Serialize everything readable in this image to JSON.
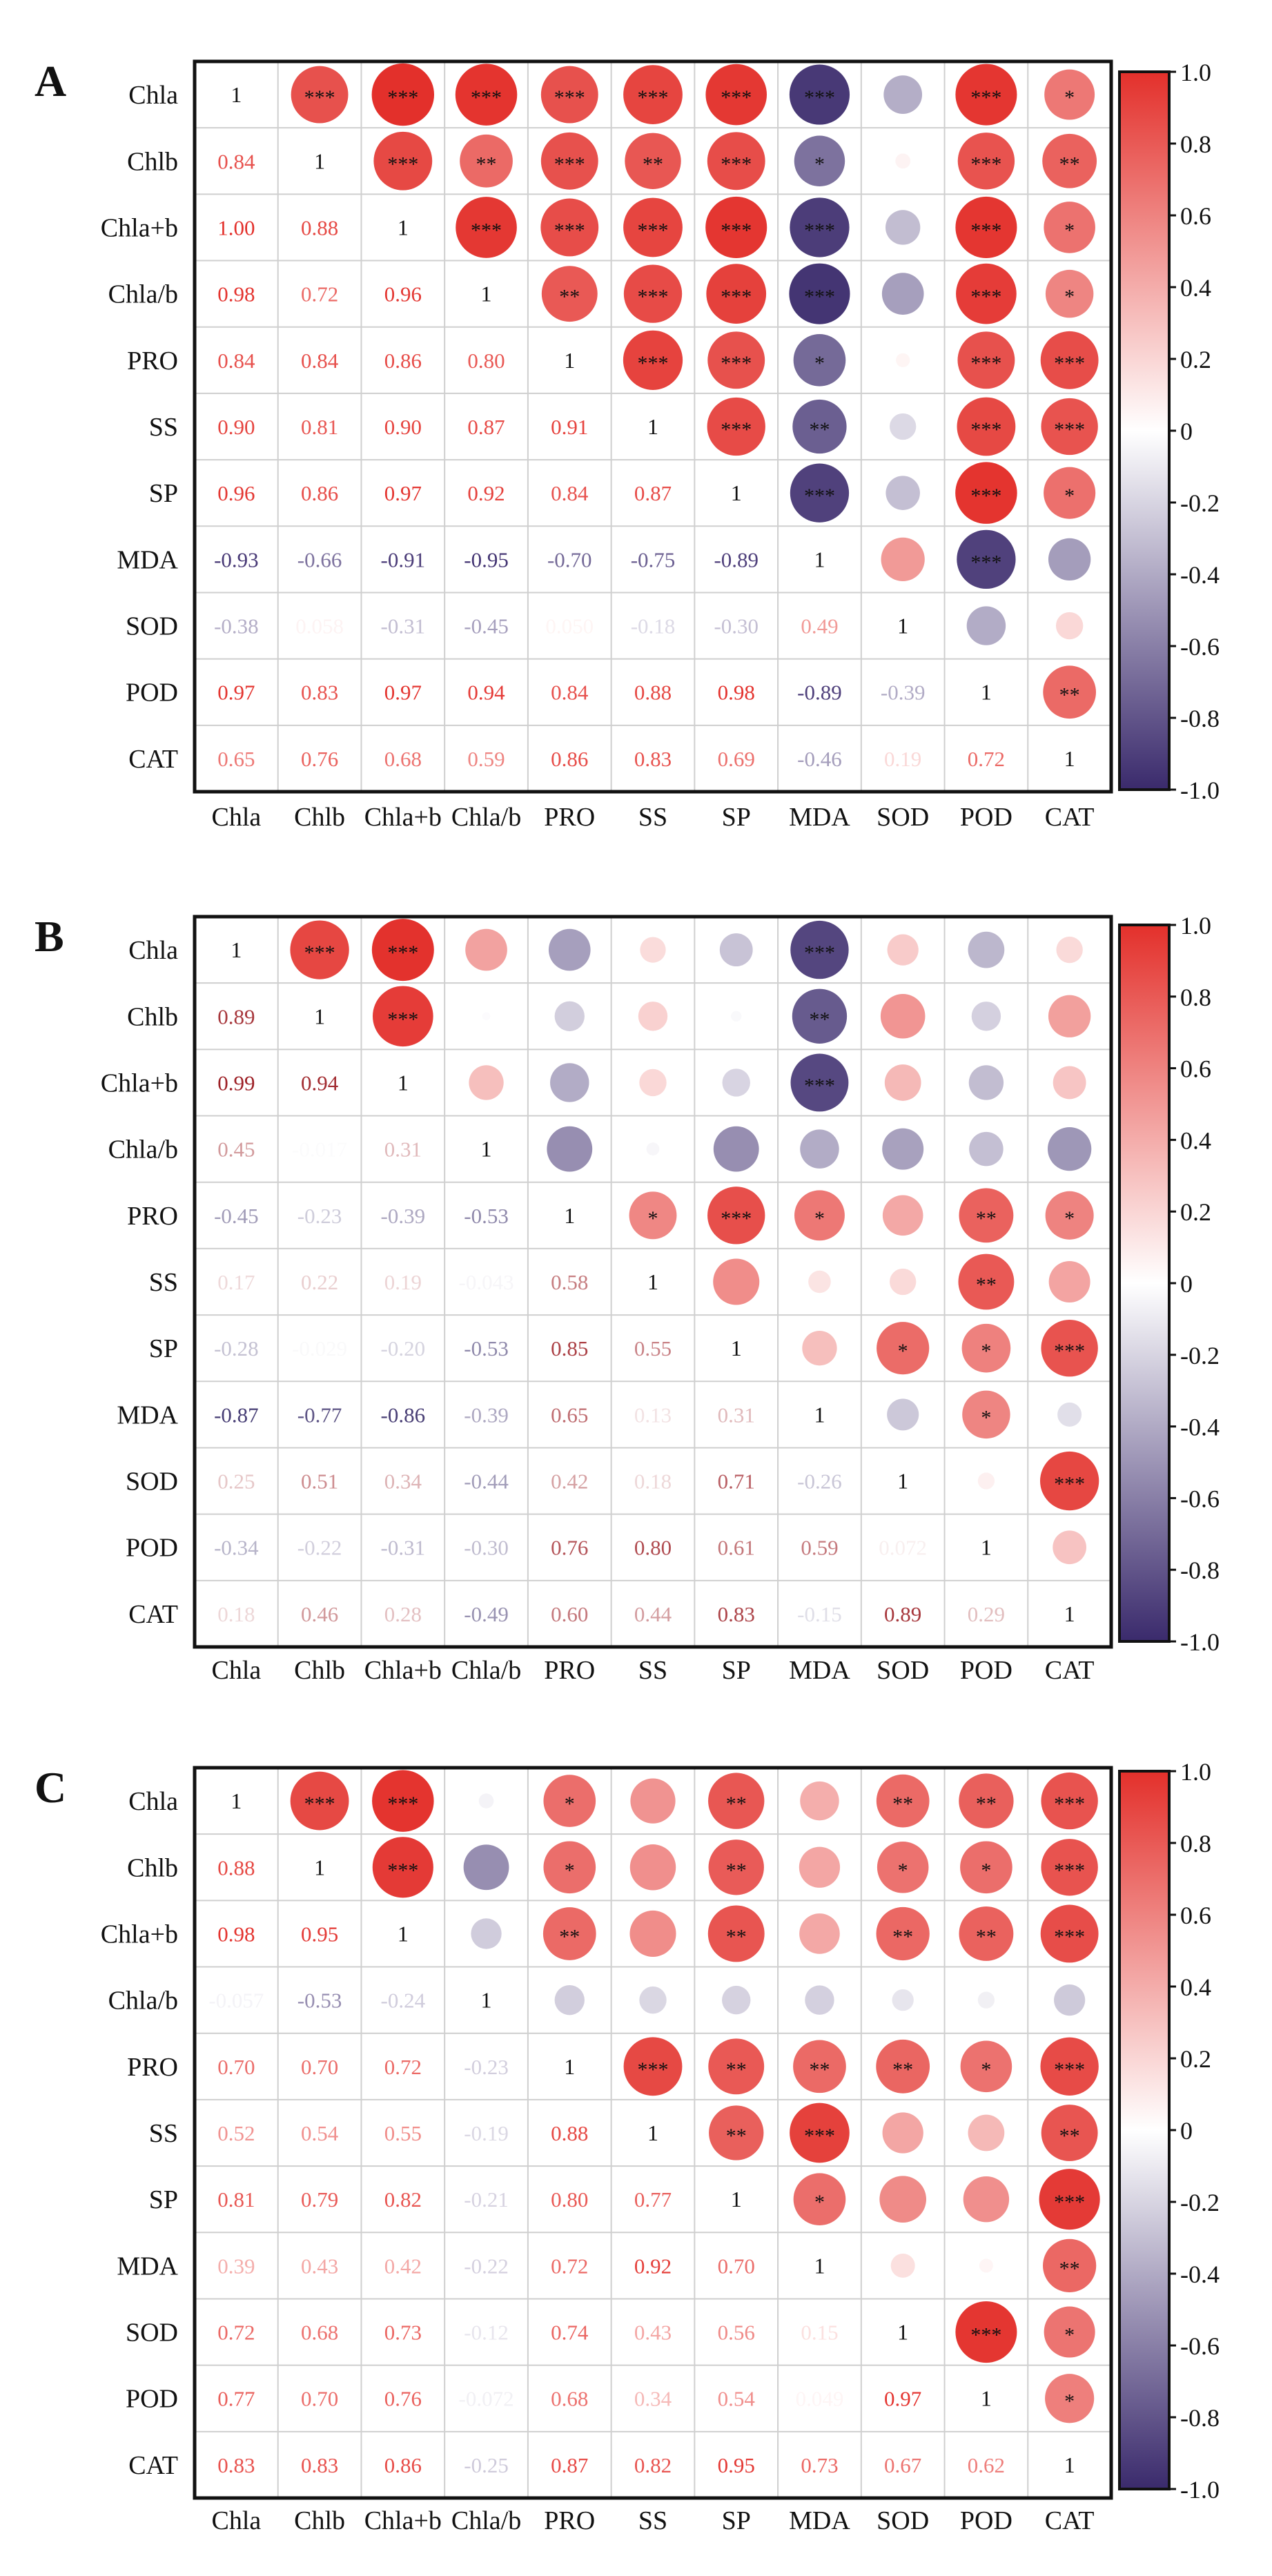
{
  "chart_data": [
    {
      "type": "heatmap",
      "panel_label": "A",
      "variables": [
        "Chla",
        "Chlb",
        "Chla+b",
        "Chla/b",
        "PRO",
        "SS",
        "SP",
        "MDA",
        "SOD",
        "POD",
        "CAT"
      ],
      "lower_values": [
        [],
        [
          "0.84"
        ],
        [
          "1.00",
          "0.88"
        ],
        [
          "0.98",
          "0.72",
          "0.96"
        ],
        [
          "0.84",
          "0.84",
          "0.86",
          "0.80"
        ],
        [
          "0.90",
          "0.81",
          "0.90",
          "0.87",
          "0.91"
        ],
        [
          "0.96",
          "0.86",
          "0.97",
          "0.92",
          "0.84",
          "0.87"
        ],
        [
          "-0.93",
          "-0.66",
          "-0.91",
          "-0.95",
          "-0.70",
          "-0.75",
          "-0.89"
        ],
        [
          "-0.38",
          "0.058",
          "-0.31",
          "-0.45",
          "0.050",
          "-0.18",
          "-0.30",
          "0.49"
        ],
        [
          "0.97",
          "0.83",
          "0.97",
          "0.94",
          "0.84",
          "0.88",
          "0.98",
          "-0.89",
          "-0.39"
        ],
        [
          "0.65",
          "0.76",
          "0.68",
          "0.59",
          "0.86",
          "0.83",
          "0.69",
          "-0.46",
          "0.19",
          "0.72"
        ]
      ],
      "upper_significance": [
        [
          "***",
          "***",
          "***",
          "***",
          "***",
          "***",
          "***",
          "",
          "***",
          "*"
        ],
        [
          "***",
          "**",
          "***",
          "**",
          "***",
          "*",
          "",
          "***",
          "**"
        ],
        [
          "***",
          "***",
          "***",
          "***",
          "***",
          "",
          "***",
          "*"
        ],
        [
          "**",
          "***",
          "***",
          "***",
          "",
          "***",
          "*"
        ],
        [
          "***",
          "***",
          "*",
          "",
          "***",
          "***"
        ],
        [
          "***",
          "**",
          "",
          "***",
          "***"
        ],
        [
          "***",
          "",
          "***",
          "*"
        ],
        [
          "",
          "***",
          ""
        ],
        [
          "",
          ""
        ],
        [
          "**"
        ]
      ],
      "diagonal_label": "1",
      "colorbar_ticks": [
        "1.0",
        "0.8",
        "0.6",
        "0.4",
        "0.2",
        "0",
        "-0.2",
        "-0.4",
        "-0.6",
        "-0.8",
        "-1.0"
      ],
      "color_range": [
        -1,
        1
      ],
      "text_dark": false
    },
    {
      "type": "heatmap",
      "panel_label": "B",
      "variables": [
        "Chla",
        "Chlb",
        "Chla+b",
        "Chla/b",
        "PRO",
        "SS",
        "SP",
        "MDA",
        "SOD",
        "POD",
        "CAT"
      ],
      "lower_values": [
        [],
        [
          "0.89"
        ],
        [
          "0.99",
          "0.94"
        ],
        [
          "0.45",
          "-0.017",
          "0.31"
        ],
        [
          "-0.45",
          "-0.23",
          "-0.39",
          "-0.53"
        ],
        [
          "0.17",
          "0.22",
          "0.19",
          "-0.043",
          "0.58"
        ],
        [
          "-0.28",
          "-0.029",
          "-0.20",
          "-0.53",
          "0.85",
          "0.55"
        ],
        [
          "-0.87",
          "-0.77",
          "-0.86",
          "-0.39",
          "0.65",
          "0.13",
          "0.31"
        ],
        [
          "0.25",
          "0.51",
          "0.34",
          "-0.44",
          "0.42",
          "0.18",
          "0.71",
          "-0.26"
        ],
        [
          "-0.34",
          "-0.22",
          "-0.31",
          "-0.30",
          "0.76",
          "0.80",
          "0.61",
          "0.59",
          "0.072"
        ],
        [
          "0.18",
          "0.46",
          "0.28",
          "-0.49",
          "0.60",
          "0.44",
          "0.83",
          "-0.15",
          "0.89",
          "0.29"
        ]
      ],
      "upper_significance": [
        [
          "***",
          "***",
          "",
          "",
          "",
          "",
          "***",
          "",
          "",
          ""
        ],
        [
          "***",
          "",
          "",
          "",
          "",
          "**",
          "",
          "",
          ""
        ],
        [
          "",
          "",
          "",
          "",
          "***",
          "",
          "",
          ""
        ],
        [
          "",
          "",
          "",
          "",
          "",
          "",
          ""
        ],
        [
          "*",
          "***",
          "*",
          "",
          "**",
          "*"
        ],
        [
          "",
          "",
          "",
          "**",
          ""
        ],
        [
          "",
          "*",
          "*",
          "***"
        ],
        [
          "",
          "*",
          ""
        ],
        [
          "",
          "***"
        ],
        [
          ""
        ]
      ],
      "diagonal_label": "1",
      "colorbar_ticks": [
        "1.0",
        "0.8",
        "0.6",
        "0.4",
        "0.2",
        "0",
        "-0.2",
        "-0.4",
        "-0.6",
        "-0.8",
        "-1.0"
      ],
      "color_range": [
        -1,
        1
      ],
      "text_dark": true
    },
    {
      "type": "heatmap",
      "panel_label": "C",
      "variables": [
        "Chla",
        "Chlb",
        "Chla+b",
        "Chla/b",
        "PRO",
        "SS",
        "SP",
        "MDA",
        "SOD",
        "POD",
        "CAT"
      ],
      "lower_values": [
        [],
        [
          "0.88"
        ],
        [
          "0.98",
          "0.95"
        ],
        [
          "-0.057",
          "-0.53",
          "-0.24"
        ],
        [
          "0.70",
          "0.70",
          "0.72",
          "-0.23"
        ],
        [
          "0.52",
          "0.54",
          "0.55",
          "-0.19",
          "0.88"
        ],
        [
          "0.81",
          "0.79",
          "0.82",
          "-0.21",
          "0.80",
          "0.77"
        ],
        [
          "0.39",
          "0.43",
          "0.42",
          "-0.22",
          "0.72",
          "0.92",
          "0.70"
        ],
        [
          "0.72",
          "0.68",
          "0.73",
          "-0.12",
          "0.74",
          "0.43",
          "0.56",
          "0.15"
        ],
        [
          "0.77",
          "0.70",
          "0.76",
          "-0.072",
          "0.68",
          "0.34",
          "0.54",
          "0.049",
          "0.97"
        ],
        [
          "0.83",
          "0.83",
          "0.86",
          "-0.25",
          "0.87",
          "0.82",
          "0.95",
          "0.73",
          "0.67",
          "0.62"
        ]
      ],
      "upper_significance": [
        [
          "***",
          "***",
          "",
          "*",
          "",
          "**",
          "",
          "**",
          "**",
          "***"
        ],
        [
          "***",
          "",
          "*",
          "",
          "**",
          "",
          "*",
          "*",
          "***"
        ],
        [
          "",
          "**",
          "",
          "**",
          "",
          "**",
          "**",
          "***"
        ],
        [
          "",
          "",
          "",
          "",
          "",
          "",
          ""
        ],
        [
          "***",
          "**",
          "**",
          "**",
          "*",
          "***"
        ],
        [
          "**",
          "***",
          "",
          "",
          "**"
        ],
        [
          "*",
          "",
          "",
          "***"
        ],
        [
          "",
          "",
          "**"
        ],
        [
          "***",
          "*"
        ],
        [
          "*"
        ]
      ],
      "diagonal_label": "1",
      "colorbar_ticks": [
        "1.0",
        "0.8",
        "0.6",
        "0.4",
        "0.2",
        "0",
        "-0.2",
        "-0.4",
        "-0.6",
        "-0.8",
        "-1.0"
      ],
      "color_range": [
        -1,
        1
      ],
      "text_dark": false
    }
  ],
  "colors": {
    "negative": "#3a2a6c",
    "zero": "#ffffff",
    "positive": "#e3302b",
    "positive_dark_text": "#9c1e24",
    "negative_dark_text": "#2c2160",
    "grid": "#cfcfcf",
    "border": "#111111"
  }
}
